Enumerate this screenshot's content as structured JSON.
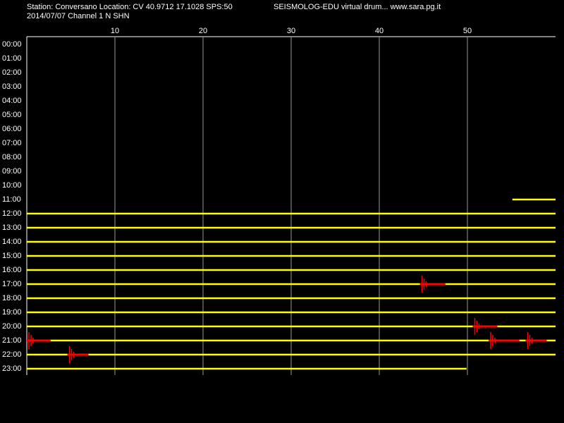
{
  "chart_data": {
    "type": "drum",
    "header": [
      "Station: Conversano Location: CV 40.9712 17.1028 SPS:50",
      "SEISMOLOG-EDU virtual drum... www.sara.pg.it",
      "2014/07/07  Channel 1 N SHN"
    ],
    "xlim": [
      0,
      60
    ],
    "xticks": [
      10,
      20,
      30,
      40,
      50
    ],
    "grid": true,
    "trace_color": "#ffff00",
    "event_color": "#ff0000",
    "rows": [
      {
        "label": "00:00"
      },
      {
        "label": "01:00"
      },
      {
        "label": "02:00"
      },
      {
        "label": "03:00"
      },
      {
        "label": "04:00"
      },
      {
        "label": "05:00"
      },
      {
        "label": "06:00"
      },
      {
        "label": "07:00"
      },
      {
        "label": "08:00"
      },
      {
        "label": "09:00"
      },
      {
        "label": "10:00"
      },
      {
        "label": "11:00",
        "trace": [
          55.1,
          60
        ]
      },
      {
        "label": "12:00",
        "trace": [
          0,
          60
        ]
      },
      {
        "label": "13:00",
        "trace": [
          0,
          60
        ]
      },
      {
        "label": "14:00",
        "trace": [
          0,
          60
        ]
      },
      {
        "label": "15:00",
        "trace": [
          0,
          60
        ]
      },
      {
        "label": "16:00",
        "trace": [
          0,
          60
        ]
      },
      {
        "label": "17:00",
        "trace": [
          0,
          60
        ],
        "events": [
          [
            44.6,
            47.5
          ]
        ]
      },
      {
        "label": "18:00",
        "trace": [
          0,
          60
        ]
      },
      {
        "label": "19:00",
        "trace": [
          0,
          60
        ]
      },
      {
        "label": "20:00",
        "trace": [
          0,
          60
        ],
        "events": [
          [
            50.6,
            53.4
          ]
        ]
      },
      {
        "label": "21:00",
        "trace": [
          0,
          60
        ],
        "events": [
          [
            0,
            2.7
          ],
          [
            52.4,
            55.9
          ],
          [
            56.6,
            59
          ]
        ]
      },
      {
        "label": "22:00",
        "trace": [
          0,
          60
        ],
        "events": [
          [
            4.6,
            7.0
          ]
        ]
      },
      {
        "label": "23:00",
        "trace": [
          0,
          49.9
        ]
      }
    ]
  }
}
